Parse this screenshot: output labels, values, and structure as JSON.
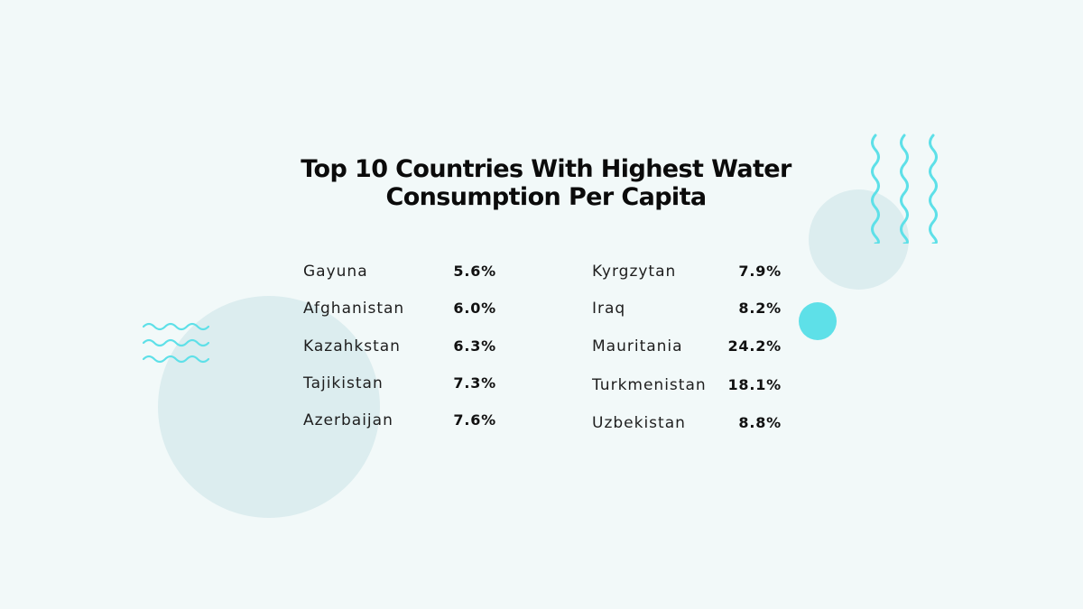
{
  "title": "Top 10 Countries With Highest Water Consumption Per Capita",
  "colors": {
    "background": "#f2f9f9",
    "circle_fill": "#dcedef",
    "accent": "#5ee0e8",
    "text": "#111111"
  },
  "decorations": {
    "large_circle": "circle",
    "medium_circle": "circle",
    "accent_dot": "circle",
    "horizontal_waves": "waves-icon",
    "vertical_waves": "waves-icon"
  },
  "left_column": [
    {
      "country": "Gayuna",
      "value": "5.6%"
    },
    {
      "country": "Afghanistan",
      "value": "6.0%"
    },
    {
      "country": "Kazahkstan",
      "value": "6.3%"
    },
    {
      "country": "Tajikistan",
      "value": "7.3%"
    },
    {
      "country": "Azerbaijan",
      "value": "7.6%"
    }
  ],
  "right_column": [
    {
      "country": "Kyrgzytan",
      "value": "7.9%"
    },
    {
      "country": "Iraq",
      "value": "8.2%"
    },
    {
      "country": "Mauritania",
      "value": "24.2%"
    },
    {
      "country": "Turkmenistan",
      "value": "18.1%"
    },
    {
      "country": "Uzbekistan",
      "value": "8.8%"
    }
  ]
}
